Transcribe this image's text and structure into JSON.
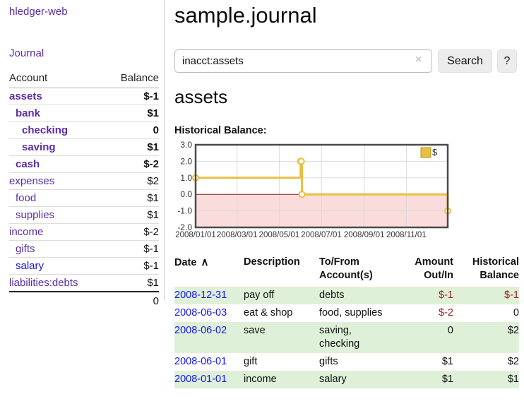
{
  "app_title": "hledger-web",
  "sidebar": {
    "journal_link": "Journal",
    "accounts": {
      "header_account": "Account",
      "header_balance": "Balance",
      "rows": [
        {
          "name": "assets",
          "balance": "$-1",
          "level": 1,
          "bold": true
        },
        {
          "name": "bank",
          "balance": "$1",
          "level": 2,
          "bold": true
        },
        {
          "name": "checking",
          "balance": "0",
          "level": 3,
          "bold": true
        },
        {
          "name": "saving",
          "balance": "$1",
          "level": 3,
          "bold": true
        },
        {
          "name": "cash",
          "balance": "$-2",
          "level": 2,
          "bold": true
        },
        {
          "name": "expenses",
          "balance": "$2",
          "level": 1,
          "bold": false
        },
        {
          "name": "food",
          "balance": "$1",
          "level": 2,
          "bold": false
        },
        {
          "name": "supplies",
          "balance": "$1",
          "level": 2,
          "bold": false
        },
        {
          "name": "income",
          "balance": "$-2",
          "level": 1,
          "bold": false
        },
        {
          "name": "gifts",
          "balance": "$-1",
          "level": 2,
          "bold": false
        },
        {
          "name": "salary",
          "balance": "$-1",
          "level": 2,
          "bold": false,
          "blue": true
        },
        {
          "name": "liabilities:debts",
          "balance": "$1",
          "level": 1,
          "bold": false
        }
      ],
      "total": "0"
    }
  },
  "main": {
    "page_title": "sample.journal",
    "search": {
      "value": "inacct:assets",
      "clear_icon": "×",
      "search_button": "Search",
      "help_button": "?"
    },
    "account_heading": "assets",
    "chart_title": "Historical Balance:"
  },
  "chart_data": {
    "type": "line",
    "step": true,
    "title": "Historical Balance",
    "x_range": [
      "2008-01-01",
      "2008-12-31"
    ],
    "ylim": [
      -2,
      3
    ],
    "y_ticks": [
      3,
      2,
      1,
      0,
      -1,
      -2
    ],
    "y_tick_labels": [
      "3.0",
      "2.0",
      "1.0",
      "0.0",
      "-1.0",
      "-2.0"
    ],
    "x_ticks": [
      {
        "date": "2008-01-01",
        "label": "2008/01/01"
      },
      {
        "date": "2008-03-01",
        "label": "2008/03/01"
      },
      {
        "date": "2008-05-01",
        "label": "2008/05/01"
      },
      {
        "date": "2008-07-01",
        "label": "2008/07/01"
      },
      {
        "date": "2008-09-01",
        "label": "2008/09/01"
      },
      {
        "date": "2008-11-01",
        "label": "2008/11/01"
      }
    ],
    "series": [
      {
        "name": "$",
        "color": "#e9bf41",
        "points": [
          {
            "date": "2008-01-01",
            "value": 1
          },
          {
            "date": "2008-06-01",
            "value": 2
          },
          {
            "date": "2008-06-02",
            "value": 2
          },
          {
            "date": "2008-06-03",
            "value": 0
          },
          {
            "date": "2008-12-31",
            "value": -1
          }
        ]
      }
    ],
    "legend": {
      "label": "$",
      "position": "top-right"
    },
    "grid": true,
    "grid_color": "#d9d9d9",
    "frame_color": "#4a4a4a",
    "zero_line_color": "#8b1a1a",
    "negative_region_color": "#fbdcdc"
  },
  "register": {
    "headers": {
      "date": "Date",
      "sort_icon": "∧",
      "description": "Description",
      "account": [
        "To/From",
        "Account(s)"
      ],
      "amount": [
        "Amount",
        "Out/In"
      ],
      "balance": [
        "Historical",
        "Balance"
      ]
    },
    "rows": [
      {
        "date": "2008-12-31",
        "description": "pay off",
        "accounts": [
          "debts"
        ],
        "amount": "$-1",
        "balance": "$-1"
      },
      {
        "date": "2008-06-03",
        "description": "eat & shop",
        "accounts": [
          "food, supplies"
        ],
        "amount": "$-2",
        "balance": "0"
      },
      {
        "date": "2008-06-02",
        "description": "save",
        "accounts": [
          "saving,",
          "checking"
        ],
        "amount": "0",
        "balance": "$2"
      },
      {
        "date": "2008-06-01",
        "description": "gift",
        "accounts": [
          "gifts"
        ],
        "amount": "$1",
        "balance": "$2"
      },
      {
        "date": "2008-01-01",
        "description": "income",
        "accounts": [
          "salary"
        ],
        "amount": "$1",
        "balance": "$1"
      }
    ]
  },
  "colors": {
    "link_purple": "#5b2ca5",
    "link_blue": "#1417ee",
    "negative_strong": "#9d1d1d",
    "negative_soft": "#bd7c7c",
    "row_highlight_green": "#dff0d8",
    "chart_line_gold": "#e9bf41",
    "chart_negative_pink": "#fbdcdc",
    "chart_zero_line": "#8b1a1a",
    "button_gray": "#ececec"
  }
}
